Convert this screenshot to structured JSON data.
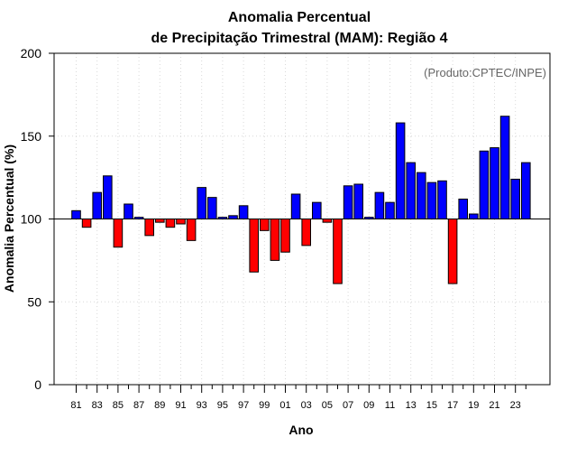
{
  "chart_data": {
    "type": "bar",
    "title_line1": "Anomalia Percentual",
    "title_line2": "de Precipitação Trimestral (MAM): Região 4",
    "watermark": "(Produto:CPTEC/INPE)",
    "xlabel": "Ano",
    "ylabel": "Anomalia Percentual (%)",
    "ylim": [
      0,
      200
    ],
    "yticks": [
      "0",
      "50",
      "100",
      "150",
      "200"
    ],
    "baseline": 100,
    "grid": true,
    "colors": {
      "above": "#0000ff",
      "below": "#ff0000",
      "axis": "#000000",
      "grid": "#d9d9d9",
      "watermark": "#666666"
    },
    "categories": [
      "1981",
      "1982",
      "1983",
      "1984",
      "1985",
      "1986",
      "1987",
      "1988",
      "1989",
      "1990",
      "1991",
      "1992",
      "1993",
      "1994",
      "1995",
      "1996",
      "1997",
      "1998",
      "1999",
      "2000",
      "2001",
      "2002",
      "2003",
      "2004",
      "2005",
      "2006",
      "2007",
      "2008",
      "2009",
      "2010",
      "2011",
      "2012",
      "2013",
      "2014",
      "2015",
      "2016",
      "2017",
      "2018",
      "2019",
      "2020",
      "2021",
      "2022",
      "2023",
      "2024"
    ],
    "tick_labels": [
      "81",
      "83",
      "85",
      "87",
      "89",
      "91",
      "93",
      "95",
      "97",
      "99",
      "01",
      "03",
      "05",
      "07",
      "09",
      "11",
      "13",
      "15",
      "17",
      "19",
      "21",
      "23"
    ],
    "values": [
      105,
      95,
      116,
      126,
      83,
      109,
      101,
      90,
      98,
      95,
      97,
      87,
      119,
      113,
      101,
      102,
      108,
      68,
      93,
      75,
      80,
      115,
      84,
      110,
      98,
      61,
      120,
      121,
      101,
      116,
      110,
      158,
      134,
      128,
      122,
      123,
      61,
      112,
      103,
      141,
      143,
      162,
      124,
      134
    ]
  }
}
